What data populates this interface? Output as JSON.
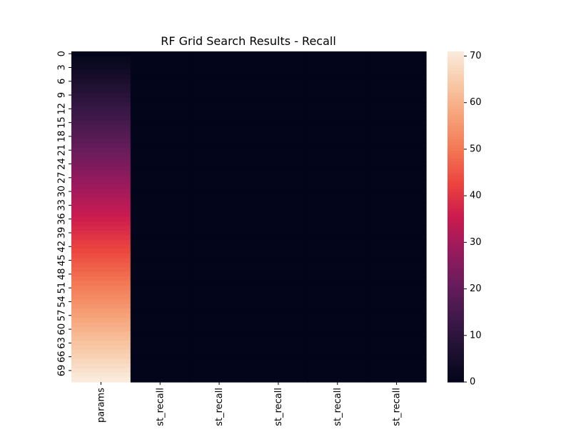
{
  "chart_data": {
    "type": "heatmap",
    "title": "RF Grid Search Results - Recall",
    "columns": [
      "params",
      "st_recall",
      "st_recall",
      "st_recall",
      "st_recall",
      "st_recall"
    ],
    "row_count": 72,
    "row_tick_labels": [
      "0",
      "3",
      "6",
      "9",
      "12",
      "15",
      "18",
      "21",
      "24",
      "27",
      "30",
      "33",
      "36",
      "39",
      "42",
      "45",
      "48",
      "51",
      "54",
      "57",
      "60",
      "63",
      "66",
      "69"
    ],
    "row_tick_step": 3,
    "values_note_column_params": "row index (0 to 71)",
    "value_columns": {
      "params": {
        "start": 0,
        "end": 71,
        "step": 1
      },
      "st_recall": {
        "approx_value": 0
      }
    },
    "colorbar": {
      "min": 0,
      "max": 71,
      "ticks": [
        0,
        10,
        20,
        30,
        40,
        50,
        60,
        70
      ],
      "colormap": "rocket"
    },
    "grid": false,
    "legend": "colorbar-right"
  }
}
